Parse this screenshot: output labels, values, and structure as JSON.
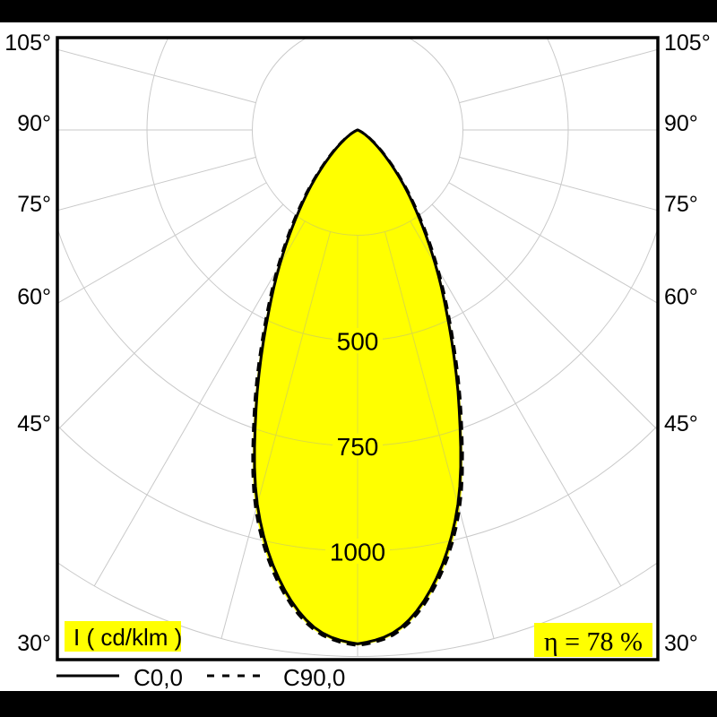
{
  "colors": {
    "fill": "#ffff00",
    "grid": "#c9c9c9",
    "grid_inner": "#dcdc40",
    "curve": "#000000",
    "badge_bg": "#ffff00",
    "frame": "#000000"
  },
  "badges": {
    "unit": "I ( cd/klm )",
    "efficiency": "η = 78 %"
  },
  "legend": {
    "items": [
      {
        "label": "C0,0",
        "style": "solid"
      },
      {
        "label": "C90,0",
        "style": "dashed"
      }
    ]
  },
  "chart_data": {
    "type": "polar_intensity",
    "unit": "cd/klm",
    "efficiency_percent": 78,
    "angle_step_deg": 15,
    "max_angle_deg": 105,
    "angle_ticks": [
      {
        "deg": 105,
        "label": "105°"
      },
      {
        "deg": 90,
        "label": "90°"
      },
      {
        "deg": 75,
        "label": "75°"
      },
      {
        "deg": 60,
        "label": "60°"
      },
      {
        "deg": 45,
        "label": "45°"
      },
      {
        "deg": 30,
        "label": "30°"
      }
    ],
    "rings": [
      250,
      500,
      750,
      1000,
      1250
    ],
    "ring_labels": [
      {
        "value": 500,
        "label": "500"
      },
      {
        "value": 750,
        "label": "750"
      },
      {
        "value": 1000,
        "label": "1000"
      }
    ],
    "series": [
      {
        "name": "C0,0",
        "style": "solid",
        "angles_deg": [
          0,
          5,
          10,
          15,
          20,
          25,
          30,
          35,
          40,
          45,
          50,
          55,
          60,
          65,
          70
        ],
        "values": [
          1220,
          1185,
          1080,
          920,
          705,
          515,
          370,
          255,
          170,
          105,
          62,
          34,
          16,
          5,
          0
        ]
      },
      {
        "name": "C90,0",
        "style": "dashed",
        "angles_deg": [
          0,
          5,
          10,
          15,
          20,
          25,
          30,
          35,
          40,
          45,
          50,
          55,
          60,
          65,
          70
        ],
        "values": [
          1224,
          1191,
          1090,
          934,
          719,
          528,
          382,
          265,
          178,
          112,
          67,
          38,
          18,
          6,
          0
        ]
      }
    ]
  }
}
